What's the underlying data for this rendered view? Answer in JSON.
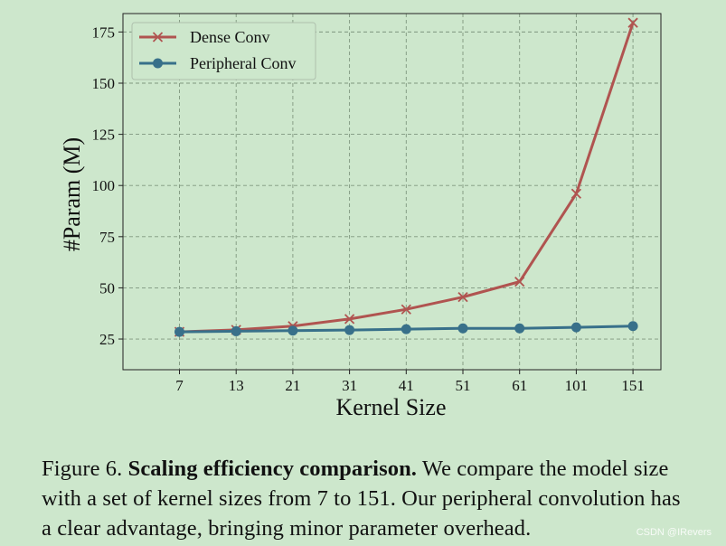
{
  "chart_data": {
    "type": "line",
    "categories": [
      "7",
      "13",
      "21",
      "31",
      "41",
      "51",
      "61",
      "101",
      "151"
    ],
    "series": [
      {
        "name": "Dense Conv",
        "values": [
          28.5,
          29.5,
          31.3,
          34.8,
          39.5,
          45.5,
          53.0,
          96.0,
          179.5
        ],
        "color": "#b05450",
        "marker": "x"
      },
      {
        "name": "Peripheral Conv",
        "values": [
          28.5,
          28.8,
          29.1,
          29.4,
          29.8,
          30.2,
          30.2,
          30.7,
          31.3
        ],
        "color": "#38708a",
        "marker": "circle"
      }
    ],
    "xlabel": "Kernel Size",
    "ylabel": "#Param (M)",
    "yticks": [
      25,
      50,
      75,
      100,
      125,
      150,
      175
    ],
    "ylim": [
      10,
      184
    ],
    "grid": true,
    "legend_position": "top-left"
  },
  "caption": {
    "label": "Figure 6.",
    "title": "Scaling efficiency comparison.",
    "text": "We compare the model size with a set of kernel sizes from 7 to 151. Our peripheral convolution has a clear advantage, bringing minor parameter overhead."
  },
  "watermark": "CSDN @IRevers"
}
